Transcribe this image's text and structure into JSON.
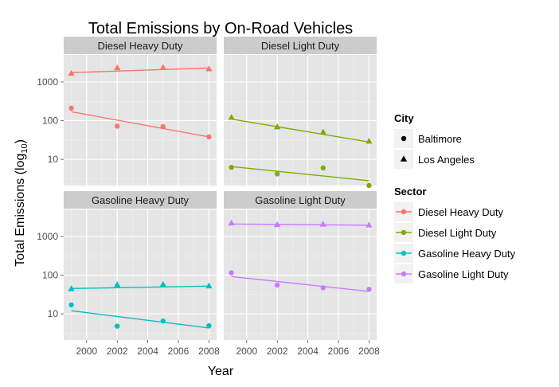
{
  "chart_data": {
    "type": "scatter",
    "title": "Total Emissions by On-Road Vehicles",
    "xlabel": "Year",
    "ylabel": "Total Emissions (log",
    "ylabel_subscript": "10",
    "ylabel_close": ")",
    "y_scale": "log10",
    "xlim": [
      1998.5,
      2008.5
    ],
    "ylim": [
      2.1,
      5000
    ],
    "x_ticks": [
      2000,
      2002,
      2004,
      2006,
      2008
    ],
    "x_tick_labels": [
      "2000",
      "2002",
      "2004",
      "2006",
      "2008"
    ],
    "y_ticks": [
      10,
      100,
      1000
    ],
    "y_tick_labels": [
      "10",
      "100",
      "1000"
    ],
    "grid": true,
    "legend_position": "right",
    "legends": {
      "city": {
        "title": "City",
        "items": [
          {
            "label": "Baltimore",
            "shape": "circle"
          },
          {
            "label": "Los Angeles",
            "shape": "triangle"
          }
        ]
      },
      "sector": {
        "title": "Sector",
        "items": [
          {
            "label": "Diesel Heavy Duty",
            "color": "#F8766D"
          },
          {
            "label": "Diesel Light Duty",
            "color": "#7CAE00"
          },
          {
            "label": "Gasoline Heavy Duty",
            "color": "#00BFC4"
          },
          {
            "label": "Gasoline Light Duty",
            "color": "#C77CFF"
          }
        ]
      }
    },
    "panels": [
      {
        "label": "Diesel Heavy Duty",
        "color": "#F8766D",
        "series": [
          {
            "city": "Baltimore",
            "x": [
              1999,
              2002,
              2005,
              2008
            ],
            "y": [
              210,
              72,
              70,
              38
            ],
            "trend": [
              [
                1999,
                170
              ],
              [
                2008,
                38
              ]
            ]
          },
          {
            "city": "Los Angeles",
            "x": [
              1999,
              2002,
              2005,
              2008
            ],
            "y": [
              1650,
              2300,
              2350,
              2150
            ],
            "trend": [
              [
                1999,
                1750
              ],
              [
                2008,
                2300
              ]
            ]
          }
        ]
      },
      {
        "label": "Diesel Light Duty",
        "color": "#7CAE00",
        "series": [
          {
            "city": "Baltimore",
            "x": [
              1999,
              2002,
              2005,
              2008
            ],
            "y": [
              6.2,
              4.2,
              6.0,
              2.1
            ],
            "trend": [
              [
                1999,
                6.5
              ],
              [
                2008,
                2.8
              ]
            ]
          },
          {
            "city": "Los Angeles",
            "x": [
              1999,
              2002,
              2005,
              2008
            ],
            "y": [
              120,
              68,
              50,
              29
            ],
            "trend": [
              [
                1999,
                110
              ],
              [
                2008,
                28
              ]
            ]
          }
        ]
      },
      {
        "label": "Gasoline Heavy Duty",
        "color": "#00BFC4",
        "series": [
          {
            "city": "Baltimore",
            "x": [
              1999,
              2002,
              2005,
              2008
            ],
            "y": [
              17,
              4.8,
              6.5,
              4.9
            ],
            "trend": [
              [
                1999,
                12
              ],
              [
                2008,
                4.3
              ]
            ]
          },
          {
            "city": "Los Angeles",
            "x": [
              1999,
              2002,
              2005,
              2008
            ],
            "y": [
              44,
              56,
              57,
              52
            ],
            "trend": [
              [
                1999,
                45
              ],
              [
                2008,
                52
              ]
            ]
          }
        ]
      },
      {
        "label": "Gasoline Light Duty",
        "color": "#C77CFF",
        "series": [
          {
            "city": "Baltimore",
            "x": [
              1999,
              2002,
              2005,
              2008
            ],
            "y": [
              115,
              55,
              47,
              43
            ],
            "trend": [
              [
                1999,
                92
              ],
              [
                2008,
                38
              ]
            ]
          },
          {
            "city": "Los Angeles",
            "x": [
              1999,
              2002,
              2005,
              2008
            ],
            "y": [
              2200,
              2000,
              2050,
              1950
            ],
            "trend": [
              [
                1999,
                2100
              ],
              [
                2008,
                1950
              ]
            ]
          }
        ]
      }
    ]
  }
}
